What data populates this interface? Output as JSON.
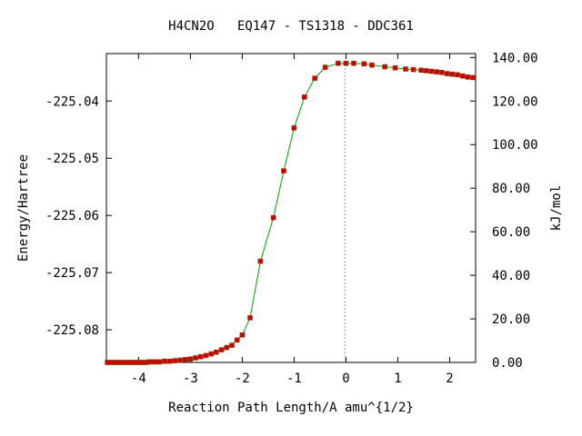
{
  "chart_data": {
    "type": "scatter",
    "title": "H4CN2O   EQ147 - TS1318 - DDC361",
    "xlabel": "Reaction Path Length/A amu^{1/2}",
    "ylabel": "Energy/Hartree",
    "y2label": "kJ/mol",
    "xlim": [
      -4.62,
      2.5
    ],
    "ylim": [
      -225.0857,
      -225.0317
    ],
    "y2lim": [
      0,
      141.8
    ],
    "x_ticks": [
      -4,
      -3,
      -2,
      -1,
      0,
      1,
      2
    ],
    "x_tick_labels": [
      "-4",
      "-3",
      "-2",
      "-1",
      "0",
      "1",
      "2"
    ],
    "y_ticks": [
      -225.04,
      -225.05,
      -225.06,
      -225.07,
      -225.08
    ],
    "y_tick_labels": [
      "-225.04",
      "-225.05",
      "-225.06",
      "-225.07",
      "-225.08"
    ],
    "y2_ticks": [
      0,
      20,
      40,
      60,
      80,
      100,
      120,
      140
    ],
    "y2_tick_labels": [
      "0.00",
      "20.00",
      "40.00",
      "60.00",
      "80.00",
      "100.00",
      "120.00",
      "140.00"
    ],
    "ts_marker_x": -0.02,
    "grid": false,
    "colors": {
      "curve": "#00a000",
      "points": "#cc0000",
      "marker_edge": "#8b4513",
      "ts_line": "#999999",
      "axes": "#000000"
    },
    "series": [
      {
        "x": [
          -4.6,
          -4.55,
          -4.5,
          -4.45,
          -4.4,
          -4.35,
          -4.3,
          -4.25,
          -4.2,
          -4.15,
          -4.1,
          -4.05,
          -4.0,
          -3.95,
          -3.9,
          -3.85,
          -3.8,
          -3.75,
          -3.7,
          -3.65,
          -3.6,
          -3.5,
          -3.4,
          -3.3,
          -3.2,
          -3.1,
          -3.0,
          -2.9,
          -2.8,
          -2.7,
          -2.6,
          -2.5,
          -2.4,
          -2.3,
          -2.2,
          -2.1,
          -2.0,
          -1.85,
          -1.65,
          -1.4,
          -1.2,
          -1.0,
          -0.8,
          -0.6,
          -0.4,
          -0.15,
          0.0,
          0.15,
          0.35,
          0.5,
          0.75,
          0.95,
          1.15,
          1.3,
          1.45,
          1.55,
          1.65,
          1.75,
          1.85,
          1.95,
          2.05,
          2.15,
          2.25,
          2.35,
          2.45
        ],
        "y": [
          -225.0857,
          -225.0857,
          -225.0857,
          -225.0857,
          -225.0857,
          -225.0857,
          -225.0857,
          -225.0857,
          -225.0857,
          -225.0857,
          -225.0857,
          -225.0857,
          -225.0857,
          -225.0857,
          -225.0857,
          -225.0857,
          -225.0856,
          -225.0856,
          -225.0856,
          -225.0856,
          -225.0856,
          -225.0855,
          -225.0855,
          -225.0854,
          -225.0853,
          -225.0852,
          -225.0851,
          -225.0849,
          -225.0847,
          -225.0845,
          -225.0842,
          -225.0839,
          -225.0835,
          -225.0831,
          -225.0827,
          -225.0818,
          -225.0809,
          -225.0779,
          -225.068,
          -225.0604,
          -225.0522,
          -225.0447,
          -225.0393,
          -225.036,
          -225.0341,
          -225.0334,
          -225.0334,
          -225.0334,
          -225.0335,
          -225.0337,
          -225.034,
          -225.0342,
          -225.0344,
          -225.0345,
          -225.0346,
          -225.0347,
          -225.0348,
          -225.0349,
          -225.035,
          -225.0352,
          -225.0353,
          -225.0354,
          -225.0356,
          -225.0358,
          -225.0359
        ]
      }
    ]
  }
}
